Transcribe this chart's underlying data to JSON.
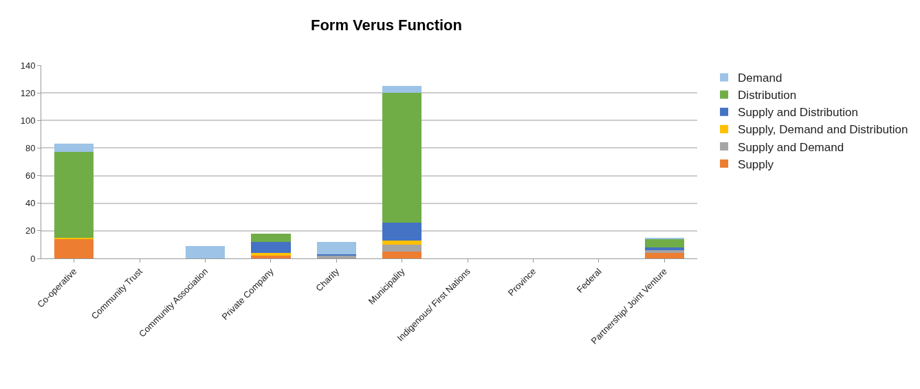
{
  "chart_data": {
    "type": "bar",
    "title": "Form Verus Function",
    "stacked": true,
    "categories": [
      "Co-operative",
      "Community Trust",
      "Community Association",
      "Private Company",
      "Charity",
      "Municipality",
      "Indigenous/ First Nations",
      "Province",
      "Federal",
      "Partnership/ Joint Venture"
    ],
    "series": [
      {
        "name": "Supply",
        "color": "#ed7d31",
        "values": [
          14,
          0,
          0,
          2,
          0,
          5,
          0,
          0,
          0,
          4
        ]
      },
      {
        "name": "Supply and Demand",
        "color": "#a5a5a5",
        "values": [
          0,
          0,
          0,
          0,
          2,
          5,
          0,
          0,
          0,
          2
        ]
      },
      {
        "name": "Supply, Demand and Distribution",
        "color": "#ffc000",
        "values": [
          1,
          0,
          0,
          2,
          0,
          3,
          0,
          0,
          0,
          0
        ]
      },
      {
        "name": "Supply and Distribution",
        "color": "#4472c4",
        "values": [
          0,
          0,
          0,
          8,
          1,
          13,
          0,
          0,
          0,
          2
        ]
      },
      {
        "name": "Distribution",
        "color": "#70ad47",
        "values": [
          62,
          0,
          0,
          6,
          0,
          94,
          0,
          0,
          0,
          6
        ]
      },
      {
        "name": "Demand",
        "color": "#9dc3e6",
        "values": [
          6,
          0,
          9,
          0,
          9,
          5,
          0,
          0,
          0,
          1
        ]
      }
    ],
    "ylim": [
      0,
      140
    ],
    "yticks": [
      0,
      20,
      40,
      60,
      80,
      100,
      120,
      140
    ],
    "grid": "y",
    "legend": "right"
  }
}
